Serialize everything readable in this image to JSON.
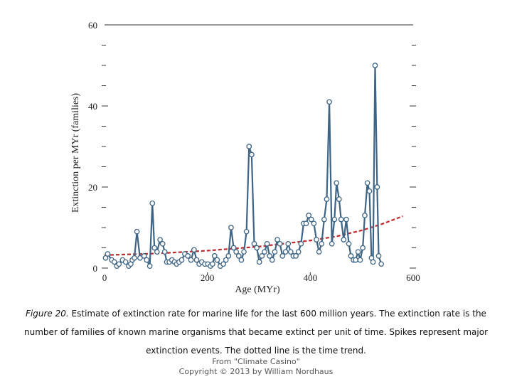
{
  "chart_data": {
    "type": "line",
    "xlabel": "Age (MYr)",
    "ylabel": "Extinction per MYr (families)",
    "xlim": [
      0,
      600
    ],
    "ylim": [
      0,
      60
    ],
    "x_ticks": [
      0,
      200,
      400,
      600
    ],
    "y_ticks": [
      0,
      20,
      40,
      60
    ],
    "series": [
      {
        "style": "line-with-circles",
        "color": "#3d6485",
        "x": [
          2,
          6,
          14,
          19,
          24,
          28,
          35,
          41,
          47,
          51,
          54,
          58,
          63,
          69,
          77,
          82,
          88,
          93,
          97,
          102,
          108,
          113,
          117,
          121,
          126,
          131,
          136,
          140,
          145,
          150,
          156,
          162,
          168,
          174,
          179,
          184,
          189,
          195,
          201,
          206,
          210,
          214,
          219,
          225,
          231,
          236,
          241,
          246,
          251,
          256,
          261,
          266,
          271,
          276,
          281,
          286,
          291,
          296,
          301,
          306,
          311,
          316,
          321,
          326,
          331,
          336,
          341,
          346,
          352,
          357,
          362,
          367,
          372,
          377,
          382,
          387,
          392,
          397,
          402,
          407,
          412,
          417,
          422,
          427,
          432,
          437,
          442,
          447,
          451,
          456,
          460,
          465,
          470,
          475,
          479,
          484,
          488,
          493,
          497,
          502,
          506,
          511,
          515,
          519,
          522,
          526,
          530,
          533,
          538
        ],
        "y": [
          2.5,
          3.5,
          2,
          1.5,
          0.5,
          1,
          2,
          1.5,
          0.5,
          1,
          2,
          2.5,
          9,
          2.5,
          3,
          2,
          0.5,
          16,
          5,
          4,
          7,
          6,
          4,
          1.5,
          1.5,
          2,
          1.5,
          1,
          1.5,
          2,
          3.5,
          3,
          2,
          4.5,
          2,
          1,
          1.5,
          1,
          1,
          0.5,
          1,
          3,
          2,
          0.5,
          1,
          2,
          3,
          10,
          5,
          4,
          3,
          2,
          4,
          9,
          30,
          28,
          6,
          5,
          1.5,
          3,
          4,
          6,
          3,
          2,
          4,
          7,
          6,
          3,
          4,
          6,
          4,
          3,
          3,
          4,
          6,
          11,
          11,
          13,
          12,
          11,
          7,
          4,
          6,
          12,
          17,
          41,
          6,
          12,
          21,
          17,
          12,
          7,
          12,
          6,
          3,
          2,
          2,
          4,
          2,
          5,
          13,
          21,
          19,
          2.5,
          1.5,
          50,
          20,
          3,
          1
        ]
      },
      {
        "name": "time trend",
        "style": "dotted",
        "color": "#c0282d",
        "x": [
          0,
          100,
          200,
          300,
          400,
          450,
          500,
          540,
          580
        ],
        "y": [
          3.2,
          3.6,
          4.3,
          5.3,
          6.8,
          7.8,
          9.3,
          10.9,
          12.8
        ]
      }
    ]
  },
  "caption": {
    "figure_label": "Figure 20.",
    "line1": "Estimate of extinction rate for marine life for the last 600 million years. The extinction rate is the",
    "line2": "number of families of known marine organisms that became extinct per unit of time. Spikes represent major",
    "line3": "extinction events. The dotted line is the time trend."
  },
  "credits": {
    "source": "From \"Climate Casino\"",
    "copyright": "Copyright © 2013 by William Nordhaus"
  }
}
